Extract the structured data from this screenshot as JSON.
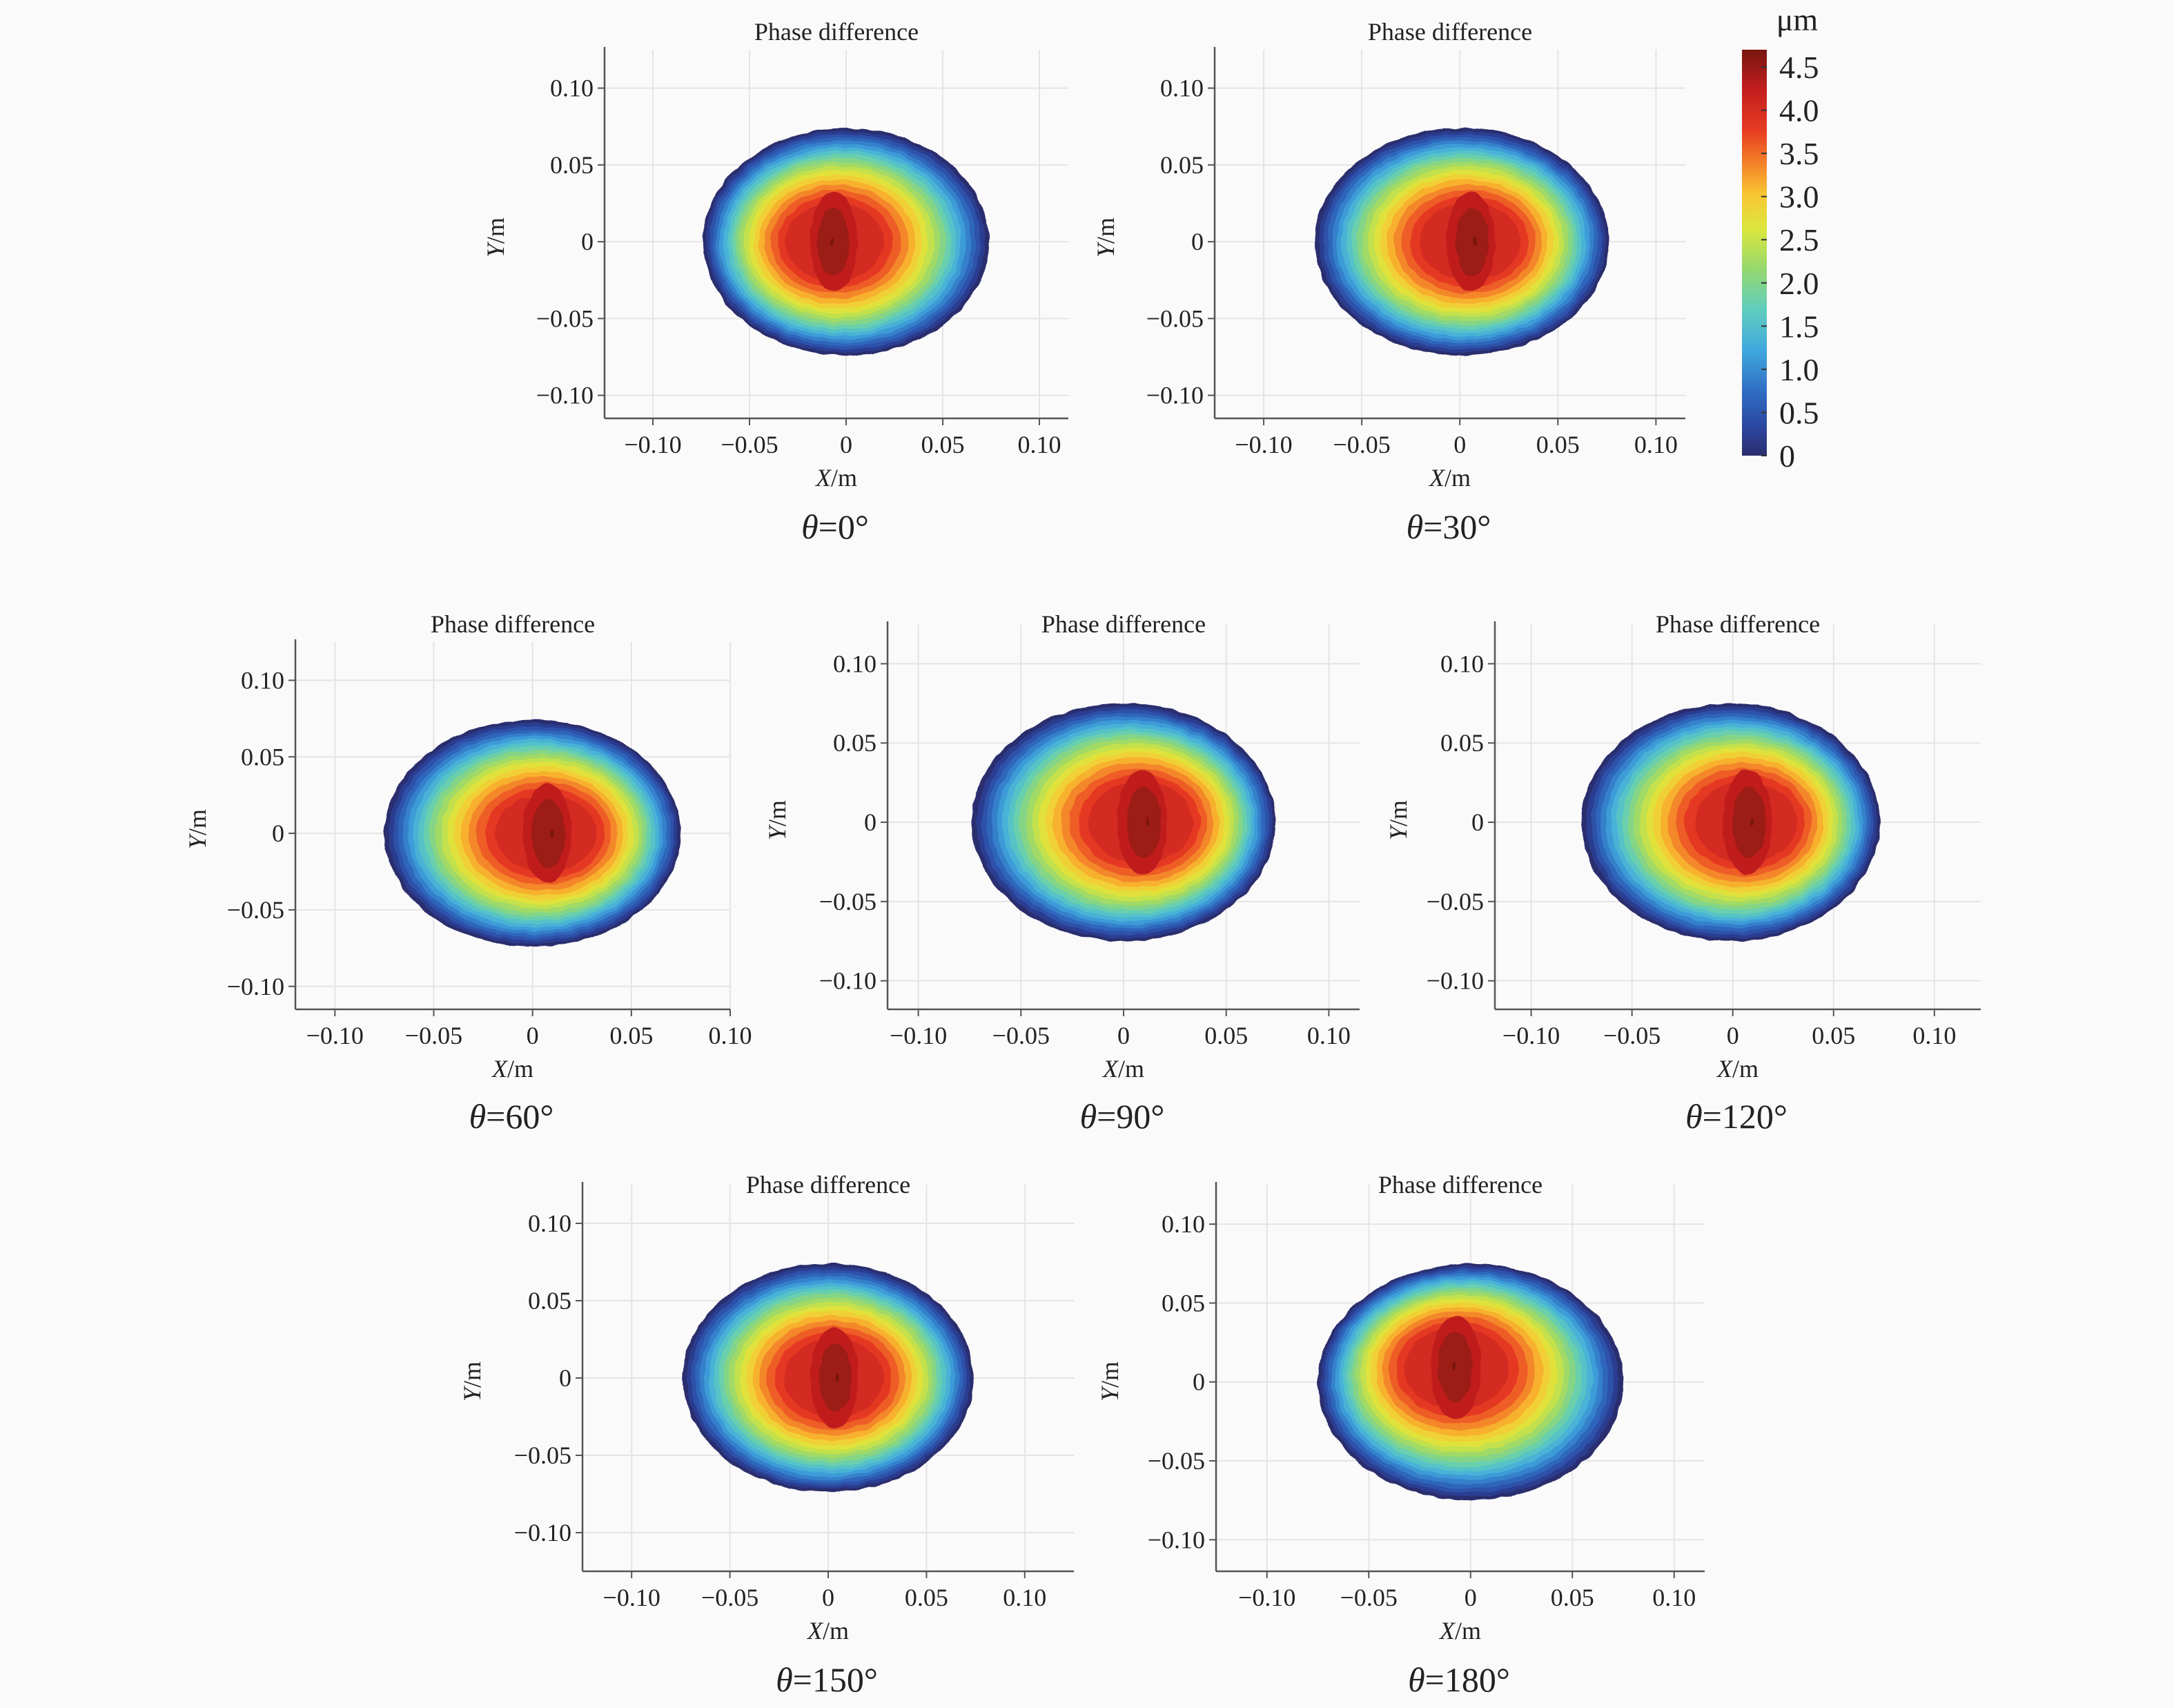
{
  "figure": {
    "colorbar": {
      "unit": "μm",
      "min": 0,
      "max": 4.7,
      "ticks": [
        "0",
        "0.5",
        "1.0",
        "1.5",
        "2.0",
        "2.5",
        "3.0",
        "3.5",
        "4.0",
        "4.5"
      ],
      "colormap": "jet-like (dark blue → blue → cyan → green → yellow → orange → red → dark red)"
    }
  },
  "chart_data": [
    {
      "type": "heatmap",
      "title": "Phase difference",
      "caption_symbol": "θ",
      "caption_value": "=0°",
      "xlabel_symbol": "X",
      "xlabel_unit": "/m",
      "ylabel_symbol": "Y",
      "ylabel_unit": "/m",
      "xlim": [
        -0.125,
        0.115
      ],
      "ylim": [
        -0.115,
        0.125
      ],
      "xticks": [
        -0.1,
        -0.05,
        0,
        0.05,
        0.1
      ],
      "yticks": [
        -0.1,
        -0.05,
        0,
        0.05,
        0.1
      ],
      "xtick_labels": [
        "−0.10",
        "−0.05",
        "0",
        "0.05",
        "0.10"
      ],
      "ytick_labels": [
        "−0.10",
        "−0.05",
        "0",
        "0.05",
        "0.10"
      ],
      "field": {
        "shape": "ellipse",
        "center": [
          0,
          0
        ],
        "semi_axes": [
          0.074,
          0.074
        ],
        "peak_value": 4.7,
        "peak_location": [
          -0.007,
          0.0
        ],
        "edge_value": 0,
        "asymmetry": "symmetric"
      }
    },
    {
      "type": "heatmap",
      "title": "Phase difference",
      "caption_symbol": "θ",
      "caption_value": "=30°",
      "xlabel_symbol": "X",
      "xlabel_unit": "/m",
      "ylabel_symbol": "Y",
      "ylabel_unit": "/m",
      "xlim": [
        -0.125,
        0.115
      ],
      "ylim": [
        -0.115,
        0.125
      ],
      "xticks": [
        -0.1,
        -0.05,
        0,
        0.05,
        0.1
      ],
      "yticks": [
        -0.1,
        -0.05,
        0,
        0.05,
        0.1
      ],
      "xtick_labels": [
        "−0.10",
        "−0.05",
        "0",
        "0.05",
        "0.10"
      ],
      "ytick_labels": [
        "−0.10",
        "−0.05",
        "0",
        "0.05",
        "0.10"
      ],
      "field": {
        "shape": "ellipse",
        "center": [
          0.001,
          0
        ],
        "semi_axes": [
          0.075,
          0.074
        ],
        "peak_value": 4.7,
        "peak_location": [
          0.0,
          0.0
        ],
        "edge_value": 0,
        "asymmetry": "low values wider on left edge"
      }
    },
    {
      "type": "heatmap",
      "title": "Phase difference",
      "caption_symbol": "θ",
      "caption_value": "=60°",
      "xlabel_symbol": "X",
      "xlabel_unit": "/m",
      "ylabel_symbol": "Y",
      "ylabel_unit": "/m",
      "xlim": [
        -0.12,
        0.1
      ],
      "ylim": [
        -0.115,
        0.125
      ],
      "xticks": [
        -0.1,
        -0.05,
        0,
        0.05,
        0.1
      ],
      "yticks": [
        -0.1,
        -0.05,
        0,
        0.05,
        0.1
      ],
      "xtick_labels": [
        "−0.10",
        "−0.05",
        "0",
        "0.05",
        "0.10"
      ],
      "ytick_labels": [
        "−0.10",
        "−0.05",
        "0",
        "0.05",
        "0.10"
      ],
      "field": {
        "shape": "ellipse",
        "center": [
          0.0,
          0
        ],
        "semi_axes": [
          0.075,
          0.074
        ],
        "peak_value": 4.7,
        "peak_location": [
          0.002,
          0.0
        ],
        "edge_value": 0,
        "asymmetry": "low values wider on left edge"
      }
    },
    {
      "type": "heatmap",
      "title": "Phase difference",
      "caption_symbol": "θ",
      "caption_value": "=90°",
      "xlabel_symbol": "X",
      "xlabel_unit": "/m",
      "ylabel_symbol": "Y",
      "ylabel_unit": "/m",
      "xlim": [
        -0.115,
        0.115
      ],
      "ylim": [
        -0.118,
        0.125
      ],
      "xticks": [
        -0.1,
        -0.05,
        0,
        0.05,
        0.1
      ],
      "yticks": [
        -0.1,
        -0.05,
        0,
        0.05,
        0.1
      ],
      "xtick_labels": [
        "−0.10",
        "−0.05",
        "0",
        "0.05",
        "0.10"
      ],
      "ytick_labels": [
        "−0.10",
        "−0.05",
        "0",
        "0.05",
        "0.10"
      ],
      "field": {
        "shape": "ellipse",
        "center": [
          0.0,
          0
        ],
        "semi_axes": [
          0.074,
          0.075
        ],
        "peak_value": 4.7,
        "peak_location": [
          0.004,
          0.0
        ],
        "edge_value": 0,
        "asymmetry": "low values wider on left edge"
      }
    },
    {
      "type": "heatmap",
      "title": "Phase difference",
      "caption_symbol": "θ",
      "caption_value": "=120°",
      "xlabel_symbol": "X",
      "xlabel_unit": "/m",
      "ylabel_symbol": "Y",
      "ylabel_unit": "/m",
      "xlim": [
        -0.118,
        0.123
      ],
      "ylim": [
        -0.118,
        0.125
      ],
      "xticks": [
        -0.1,
        -0.05,
        0,
        0.05,
        0.1
      ],
      "yticks": [
        -0.1,
        -0.05,
        0,
        0.05,
        0.1
      ],
      "xtick_labels": [
        "−0.10",
        "−0.05",
        "0",
        "0.05",
        "0.10"
      ],
      "ytick_labels": [
        "−0.10",
        "−0.05",
        "0",
        "0.05",
        "0.10"
      ],
      "field": {
        "shape": "ellipse",
        "center": [
          -0.001,
          0
        ],
        "semi_axes": [
          0.074,
          0.075
        ],
        "peak_value": 4.7,
        "peak_location": [
          0.002,
          0.0
        ],
        "edge_value": 0,
        "asymmetry": "low values wider on left edge"
      }
    },
    {
      "type": "heatmap",
      "title": "Phase difference",
      "caption_symbol": "θ",
      "caption_value": "=150°",
      "xlabel_symbol": "X",
      "xlabel_unit": "/m",
      "ylabel_symbol": "Y",
      "ylabel_unit": "/m",
      "xlim": [
        -0.125,
        0.125
      ],
      "ylim": [
        -0.125,
        0.125
      ],
      "xticks": [
        -0.1,
        -0.05,
        0,
        0.05,
        0.1
      ],
      "yticks": [
        -0.1,
        -0.05,
        0,
        0.05,
        0.1
      ],
      "xtick_labels": [
        "−0.10",
        "−0.05",
        "0",
        "0.05",
        "0.10"
      ],
      "ytick_labels": [
        "−0.10",
        "−0.05",
        "0",
        "0.05",
        "0.10"
      ],
      "field": {
        "shape": "ellipse",
        "center": [
          0.0,
          0
        ],
        "semi_axes": [
          0.074,
          0.074
        ],
        "peak_value": 4.7,
        "peak_location": [
          0.0,
          0.0
        ],
        "edge_value": 0,
        "asymmetry": "low values slightly wider on left edge"
      }
    },
    {
      "type": "heatmap",
      "title": "Phase difference",
      "caption_symbol": "θ",
      "caption_value": "=180°",
      "xlabel_symbol": "X",
      "xlabel_unit": "/m",
      "ylabel_symbol": "Y",
      "ylabel_unit": "/m",
      "xlim": [
        -0.125,
        0.115
      ],
      "ylim": [
        -0.12,
        0.125
      ],
      "xticks": [
        -0.1,
        -0.05,
        0,
        0.05,
        0.1
      ],
      "yticks": [
        -0.1,
        -0.05,
        0,
        0.05,
        0.1
      ],
      "xtick_labels": [
        "−0.10",
        "−0.05",
        "0",
        "0.05",
        "0.10"
      ],
      "ytick_labels": [
        "−0.10",
        "−0.05",
        "0",
        "0.05",
        "0.10"
      ],
      "field": {
        "shape": "ellipse",
        "center": [
          0.0,
          0
        ],
        "semi_axes": [
          0.075,
          0.075
        ],
        "peak_value": 4.7,
        "peak_location": [
          -0.008,
          0.01
        ],
        "edge_value": 0,
        "asymmetry": "symmetric"
      }
    }
  ]
}
